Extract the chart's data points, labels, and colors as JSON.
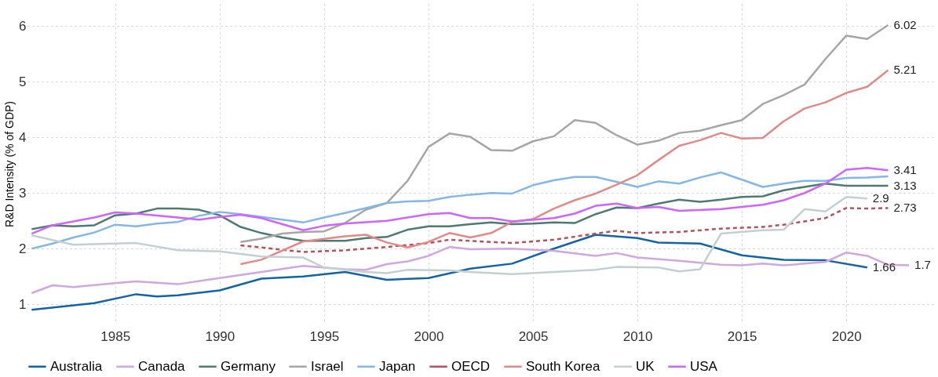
{
  "chart_data": {
    "type": "line",
    "ylabel": "R&D Intensity (% of GDP)",
    "xlim": [
      1980.8,
      2024.2
    ],
    "xticks": [
      1985,
      1990,
      1995,
      2000,
      2005,
      2010,
      2015,
      2020
    ],
    "ylim": [
      0.65,
      6.4
    ],
    "yticks": [
      1,
      2,
      3,
      4,
      5,
      6
    ],
    "grid": true,
    "legend": "bottom",
    "line_style": "solid",
    "series": [
      {
        "name": "Australia",
        "color": "#1464a5",
        "x": [
          1981,
          1984,
          1986,
          1987,
          1988,
          1990,
          1992,
          1994,
          1996,
          1998,
          2000,
          2002,
          2004,
          2006,
          2008,
          2010,
          2011,
          2013,
          2015,
          2017,
          2019,
          2021
        ],
        "values": [
          0.9,
          1.02,
          1.18,
          1.14,
          1.16,
          1.25,
          1.46,
          1.5,
          1.58,
          1.44,
          1.47,
          1.64,
          1.73,
          2.0,
          2.25,
          2.19,
          2.11,
          2.09,
          1.88,
          1.8,
          1.79,
          1.66
        ]
      },
      {
        "name": "Canada",
        "color": "#cfa8e0",
        "x": [
          1981,
          1982,
          1983,
          1985,
          1986,
          1988,
          1990,
          1992,
          1994,
          1996,
          1997,
          1998,
          1999,
          2000,
          2001,
          2002,
          2004,
          2006,
          2008,
          2009,
          2010,
          2012,
          2014,
          2015,
          2016,
          2017,
          2018,
          2019,
          2020,
          2021,
          2022,
          2023
        ],
        "values": [
          1.2,
          1.34,
          1.31,
          1.38,
          1.41,
          1.36,
          1.47,
          1.58,
          1.69,
          1.63,
          1.62,
          1.72,
          1.77,
          1.87,
          2.03,
          1.99,
          2.0,
          1.96,
          1.87,
          1.92,
          1.84,
          1.78,
          1.71,
          1.7,
          1.73,
          1.7,
          1.73,
          1.76,
          1.93,
          1.87,
          1.71,
          1.7
        ]
      },
      {
        "name": "Germany",
        "color": "#4e7a72",
        "x": [
          1981,
          1982,
          1983,
          1984,
          1985,
          1986,
          1987,
          1988,
          1989,
          1990,
          1991,
          1992,
          1993,
          1994,
          1995,
          1996,
          1997,
          1998,
          1999,
          2000,
          2001,
          2002,
          2003,
          2004,
          2005,
          2006,
          2007,
          2008,
          2009,
          2010,
          2011,
          2012,
          2013,
          2014,
          2015,
          2016,
          2017,
          2018,
          2019,
          2020,
          2021,
          2022
        ],
        "values": [
          2.35,
          2.42,
          2.4,
          2.42,
          2.6,
          2.63,
          2.72,
          2.72,
          2.7,
          2.6,
          2.39,
          2.28,
          2.2,
          2.14,
          2.14,
          2.14,
          2.19,
          2.21,
          2.34,
          2.4,
          2.4,
          2.44,
          2.47,
          2.44,
          2.45,
          2.47,
          2.46,
          2.62,
          2.74,
          2.73,
          2.81,
          2.88,
          2.84,
          2.88,
          2.93,
          2.94,
          3.05,
          3.11,
          3.17,
          3.13,
          3.13,
          3.13
        ]
      },
      {
        "name": "Israel",
        "color": "#a6a6a6",
        "x": [
          1991,
          1992,
          1993,
          1994,
          1995,
          1996,
          1997,
          1998,
          1999,
          2000,
          2001,
          2002,
          2003,
          2004,
          2005,
          2006,
          2007,
          2008,
          2009,
          2010,
          2011,
          2012,
          2013,
          2014,
          2015,
          2016,
          2017,
          2018,
          2019,
          2020,
          2021,
          2022
        ],
        "values": [
          2.12,
          2.18,
          2.27,
          2.3,
          2.31,
          2.46,
          2.7,
          2.82,
          3.22,
          3.83,
          4.07,
          4.01,
          3.77,
          3.76,
          3.93,
          4.02,
          4.31,
          4.26,
          4.04,
          3.87,
          3.94,
          4.08,
          4.12,
          4.22,
          4.31,
          4.6,
          4.76,
          4.95,
          5.41,
          5.83,
          5.77,
          6.02
        ]
      },
      {
        "name": "Japan",
        "color": "#84b6e8",
        "x": [
          1981,
          1982,
          1983,
          1984,
          1985,
          1986,
          1987,
          1988,
          1989,
          1990,
          1991,
          1992,
          1993,
          1994,
          1995,
          1996,
          1997,
          1998,
          1999,
          2000,
          2001,
          2002,
          2003,
          2004,
          2005,
          2006,
          2007,
          2008,
          2009,
          2010,
          2011,
          2012,
          2013,
          2014,
          2015,
          2016,
          2017,
          2018,
          2019,
          2020,
          2021,
          2022
        ],
        "values": [
          2.0,
          2.09,
          2.2,
          2.29,
          2.43,
          2.4,
          2.45,
          2.48,
          2.59,
          2.66,
          2.62,
          2.57,
          2.52,
          2.47,
          2.56,
          2.64,
          2.73,
          2.82,
          2.85,
          2.86,
          2.93,
          2.97,
          3.0,
          2.99,
          3.14,
          3.23,
          3.29,
          3.29,
          3.2,
          3.11,
          3.21,
          3.17,
          3.28,
          3.37,
          3.24,
          3.11,
          3.17,
          3.22,
          3.22,
          3.27,
          3.28,
          3.3
        ]
      },
      {
        "name": "OECD",
        "color": "#b5525c",
        "line_style": "dashed",
        "x": [
          1991,
          1992,
          1994,
          1996,
          1998,
          2000,
          2001,
          2002,
          2004,
          2006,
          2008,
          2009,
          2010,
          2012,
          2014,
          2016,
          2017,
          2019,
          2020,
          2021,
          2022
        ],
        "values": [
          2.06,
          2.02,
          1.94,
          1.97,
          2.03,
          2.1,
          2.16,
          2.14,
          2.1,
          2.16,
          2.27,
          2.32,
          2.28,
          2.3,
          2.36,
          2.39,
          2.43,
          2.55,
          2.73,
          2.72,
          2.73
        ]
      },
      {
        "name": "South Korea",
        "color": "#e08a8a",
        "x": [
          1991,
          1992,
          1994,
          1996,
          1997,
          1998,
          1999,
          2000,
          2001,
          2002,
          2003,
          2004,
          2005,
          2006,
          2007,
          2008,
          2009,
          2010,
          2011,
          2012,
          2013,
          2014,
          2015,
          2016,
          2017,
          2018,
          2019,
          2020,
          2021,
          2022
        ],
        "values": [
          1.72,
          1.8,
          2.13,
          2.22,
          2.25,
          2.11,
          2.02,
          2.12,
          2.28,
          2.2,
          2.28,
          2.48,
          2.53,
          2.72,
          2.87,
          2.99,
          3.15,
          3.32,
          3.59,
          3.85,
          3.95,
          4.08,
          3.98,
          3.99,
          4.29,
          4.52,
          4.63,
          4.8,
          4.91,
          5.21
        ]
      },
      {
        "name": "UK",
        "color": "#c4d0cf",
        "x": [
          1981,
          1983,
          1986,
          1988,
          1990,
          1992,
          1994,
          1995,
          1997,
          1998,
          1999,
          2001,
          2002,
          2004,
          2006,
          2008,
          2009,
          2011,
          2012,
          2013,
          2014,
          2016,
          2017,
          2018,
          2019,
          2020,
          2021
        ],
        "values": [
          2.24,
          2.07,
          2.1,
          1.97,
          1.95,
          1.86,
          1.84,
          1.66,
          1.58,
          1.56,
          1.62,
          1.61,
          1.58,
          1.54,
          1.58,
          1.62,
          1.67,
          1.66,
          1.59,
          1.63,
          2.27,
          2.33,
          2.34,
          2.71,
          2.67,
          2.93,
          2.9
        ]
      },
      {
        "name": "USA",
        "color": "#cc66ff",
        "x": [
          1981,
          1982,
          1984,
          1985,
          1986,
          1988,
          1989,
          1990,
          1991,
          1992,
          1994,
          1995,
          1996,
          1998,
          2000,
          2001,
          2002,
          2003,
          2004,
          2006,
          2007,
          2008,
          2009,
          2010,
          2011,
          2012,
          2014,
          2016,
          2017,
          2018,
          2019,
          2020,
          2021,
          2022
        ],
        "values": [
          2.27,
          2.42,
          2.56,
          2.65,
          2.63,
          2.56,
          2.52,
          2.57,
          2.61,
          2.55,
          2.33,
          2.41,
          2.45,
          2.5,
          2.62,
          2.64,
          2.55,
          2.55,
          2.49,
          2.55,
          2.63,
          2.77,
          2.81,
          2.73,
          2.75,
          2.68,
          2.71,
          2.79,
          2.87,
          3.0,
          3.17,
          3.42,
          3.45,
          3.41
        ]
      }
    ],
    "annotations": [
      {
        "text": "6.02",
        "x": 2022,
        "y": 6.02
      },
      {
        "text": "5.21",
        "x": 2022,
        "y": 5.21
      },
      {
        "text": "3.41",
        "x": 2022,
        "y": 3.41
      },
      {
        "text": "3.13",
        "x": 2022,
        "y": 3.13
      },
      {
        "text": "2.73",
        "x": 2022,
        "y": 2.73
      },
      {
        "text": "2.9",
        "x": 2021,
        "y": 2.9
      },
      {
        "text": "1.66",
        "x": 2021,
        "y": 1.66
      },
      {
        "text": "1.7",
        "x": 2023,
        "y": 1.7
      }
    ]
  }
}
